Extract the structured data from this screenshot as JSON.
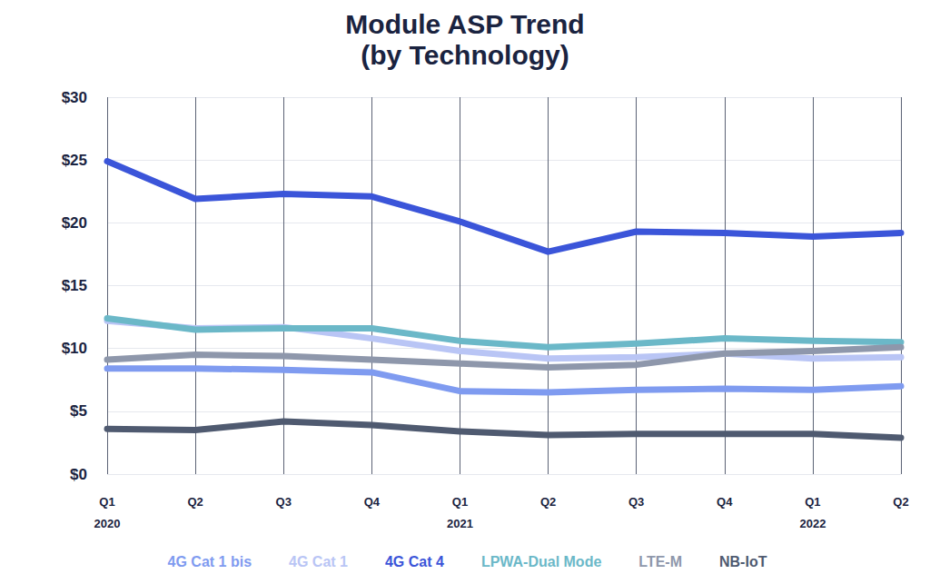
{
  "chart_data": {
    "type": "line",
    "title": "Module ASP Trend",
    "subtitle": "(by Technology)",
    "categories": [
      "Q1\n2020",
      "Q2",
      "Q3",
      "Q4",
      "Q1\n2021",
      "Q2",
      "Q3",
      "Q4",
      "Q1\n2022",
      "Q2"
    ],
    "series": [
      {
        "name": "4G Cat 1 bis",
        "color": "#7f9bf0",
        "values": [
          8.4,
          8.4,
          8.3,
          8.1,
          6.6,
          6.5,
          6.7,
          6.8,
          6.7,
          7.0
        ]
      },
      {
        "name": "4G Cat 1",
        "color": "#b9c5f5",
        "values": [
          12.2,
          11.6,
          11.7,
          10.8,
          9.8,
          9.2,
          9.3,
          9.6,
          9.2,
          9.3
        ]
      },
      {
        "name": "4G Cat 4",
        "color": "#3b55d9",
        "values": [
          24.9,
          21.9,
          22.3,
          22.1,
          20.1,
          17.7,
          19.3,
          19.2,
          18.9,
          19.2
        ]
      },
      {
        "name": "LPWA-Dual Mode",
        "color": "#6bb8c8",
        "values": [
          12.4,
          11.5,
          11.6,
          11.6,
          10.6,
          10.1,
          10.4,
          10.8,
          10.6,
          10.5
        ]
      },
      {
        "name": "LTE-M",
        "color": "#8e97ab",
        "values": [
          9.1,
          9.5,
          9.4,
          9.1,
          8.8,
          8.5,
          8.7,
          9.6,
          9.8,
          10.1
        ]
      },
      {
        "name": "NB-IoT",
        "color": "#4f5a70",
        "values": [
          3.6,
          3.5,
          4.2,
          3.9,
          3.4,
          3.1,
          3.2,
          3.2,
          3.2,
          2.9
        ]
      }
    ],
    "ylim": [
      0,
      30
    ],
    "yticks": [
      {
        "value": 0,
        "label": "$0"
      },
      {
        "value": 5,
        "label": "$5"
      },
      {
        "value": 10,
        "label": "$10"
      },
      {
        "value": 15,
        "label": "$15"
      },
      {
        "value": 20,
        "label": "$20"
      },
      {
        "value": 25,
        "label": "$25"
      },
      {
        "value": 30,
        "label": "$30"
      }
    ],
    "grid": true,
    "legend": "bottom"
  }
}
